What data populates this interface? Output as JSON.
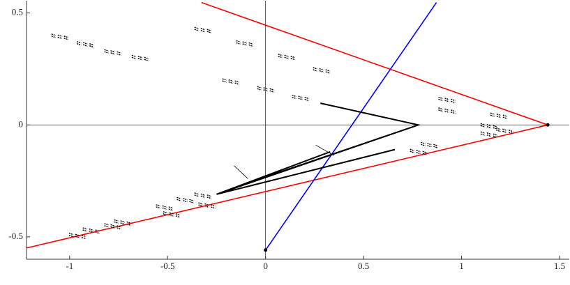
{
  "chart_data": {
    "type": "line",
    "xlim": [
      -1.22,
      1.55
    ],
    "ylim": [
      -0.6,
      0.555
    ],
    "xticks": [
      -1,
      -0.5,
      0,
      0.5,
      1,
      1.5
    ],
    "yticks": [
      -0.5,
      0,
      0.5
    ],
    "crosshair": true,
    "series": [
      {
        "type": "line",
        "color": "#ff0000",
        "width": 1.6,
        "x": [
          -0.327,
          1.44,
          null,
          -1.22,
          1.44
        ],
        "values": [
          0.547,
          0,
          null,
          -0.55,
          0
        ]
      },
      {
        "type": "line",
        "color": "#0000ff",
        "width": 1.6,
        "x": [
          0,
          0.872
        ],
        "values": [
          -0.559,
          0.547
        ]
      },
      {
        "type": "line",
        "color": "#000000",
        "width": 2,
        "x": [
          0.28,
          0.78,
          -0.25,
          0.66,
          null,
          -0.06,
          0.78,
          null,
          -0.25,
          0.33
        ],
        "values": [
          0.097,
          0,
          -0.31,
          -0.11,
          null,
          -0.25,
          0,
          null,
          -0.31,
          -0.12
        ]
      },
      {
        "type": "line",
        "color": "#000000",
        "width": 0.8,
        "x": [
          -0.16,
          -0.09,
          null,
          0.256,
          0.349
        ],
        "values": [
          -0.183,
          -0.24,
          null,
          -0.09,
          -0.137
        ]
      },
      {
        "type": "scatter",
        "marker": "dash",
        "color": "#000000",
        "x": [
          -1.05,
          -0.92,
          -0.78,
          -0.64,
          -0.32,
          -0.107,
          0.107,
          0.285,
          -0.178,
          0,
          0.178,
          0.925,
          0.925,
          1.19,
          1.14,
          1.14,
          0.836,
          0.78,
          -0.516,
          -0.41,
          -0.32,
          -0.48,
          -0.3,
          -0.96,
          -0.89,
          -0.78,
          -0.73,
          1.22
        ],
        "values": [
          0.4,
          0.366,
          0.33,
          0.305,
          0.43,
          0.37,
          0.31,
          0.25,
          0.2,
          0.165,
          0.127,
          0.118,
          0.07,
          0.047,
          0,
          -0.037,
          -0.084,
          -0.115,
          -0.363,
          -0.33,
          -0.31,
          -0.394,
          -0.354,
          -0.49,
          -0.466,
          -0.447,
          -0.43,
          -0.02
        ]
      },
      {
        "type": "scatter",
        "marker": "dot",
        "color": "#000000",
        "x": [
          0,
          1.44
        ],
        "values": [
          -0.559,
          0
        ]
      }
    ]
  }
}
